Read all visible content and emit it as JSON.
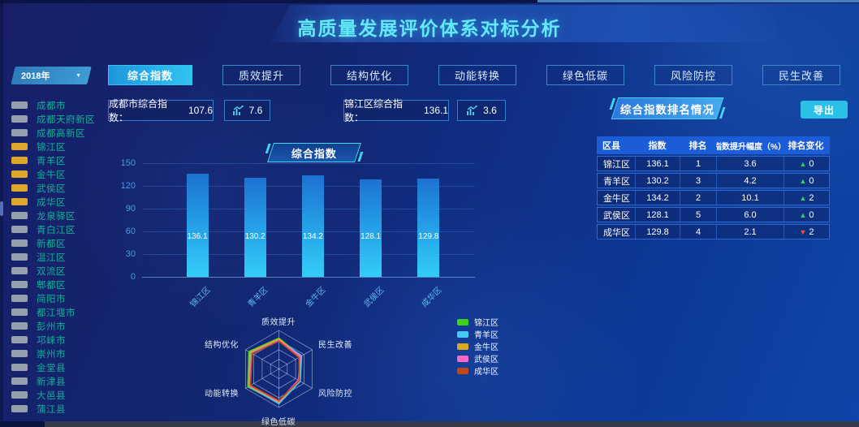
{
  "header": {
    "title": "高质量发展评价体系对标分析"
  },
  "sidebar": {
    "year": "2018年",
    "districts": [
      {
        "label": "成都市",
        "checked": false
      },
      {
        "label": "成都天府新区",
        "checked": false
      },
      {
        "label": "成都高新区",
        "checked": false
      },
      {
        "label": "锦江区",
        "checked": true
      },
      {
        "label": "青羊区",
        "checked": true
      },
      {
        "label": "金牛区",
        "checked": true
      },
      {
        "label": "武侯区",
        "checked": true
      },
      {
        "label": "成华区",
        "checked": true
      },
      {
        "label": "龙泉驿区",
        "checked": false
      },
      {
        "label": "青白江区",
        "checked": false
      },
      {
        "label": "新都区",
        "checked": false
      },
      {
        "label": "温江区",
        "checked": false
      },
      {
        "label": "双流区",
        "checked": false
      },
      {
        "label": "郫都区",
        "checked": false
      },
      {
        "label": "简阳市",
        "checked": false
      },
      {
        "label": "都江堰市",
        "checked": false
      },
      {
        "label": "彭州市",
        "checked": false
      },
      {
        "label": "邛崃市",
        "checked": false
      },
      {
        "label": "崇州市",
        "checked": false
      },
      {
        "label": "金堂县",
        "checked": false
      },
      {
        "label": "新津县",
        "checked": false
      },
      {
        "label": "大邑县",
        "checked": false
      },
      {
        "label": "蒲江县",
        "checked": false
      }
    ]
  },
  "tabs": [
    {
      "label": "综合指数",
      "active": true
    },
    {
      "label": "质效提升",
      "active": false
    },
    {
      "label": "结构优化",
      "active": false
    },
    {
      "label": "动能转换",
      "active": false
    },
    {
      "label": "绿色低碳",
      "active": false
    },
    {
      "label": "风险防控",
      "active": false
    },
    {
      "label": "民生改善",
      "active": false
    }
  ],
  "metrics": {
    "city_label": "成都市综合指数：",
    "city_value": "107.6",
    "city_delta": "7.6",
    "district_label": "锦江区综合指数：",
    "district_value": "136.1",
    "district_delta": "3.6"
  },
  "ranking": {
    "title": "综合指数排名情况",
    "export_label": "导出",
    "headers": [
      "区县",
      "指数",
      "排名",
      "指数提升幅度（%）",
      "排名变化"
    ],
    "rows": [
      {
        "district": "锦江区",
        "index": "136.1",
        "rank": "1",
        "improve": "3.6",
        "change": "0",
        "direction": "up"
      },
      {
        "district": "青羊区",
        "index": "130.2",
        "rank": "3",
        "improve": "4.2",
        "change": "0",
        "direction": "up"
      },
      {
        "district": "金牛区",
        "index": "134.2",
        "rank": "2",
        "improve": "10.1",
        "change": "2",
        "direction": "up"
      },
      {
        "district": "武侯区",
        "index": "128.1",
        "rank": "5",
        "improve": "6.0",
        "change": "0",
        "direction": "up"
      },
      {
        "district": "成华区",
        "index": "129.8",
        "rank": "4",
        "improve": "2.1",
        "change": "2",
        "direction": "down"
      }
    ]
  },
  "chart_data": [
    {
      "type": "bar",
      "title": "综合指数",
      "categories": [
        "锦江区",
        "青羊区",
        "金牛区",
        "武侯区",
        "成华区"
      ],
      "values": [
        136.1,
        130.2,
        134.2,
        128.1,
        129.8
      ],
      "xlabel": "",
      "ylabel": "",
      "ylim": [
        0,
        150
      ],
      "yticks": [
        0,
        30,
        60,
        90,
        120,
        150
      ],
      "grid": true,
      "bar_color_top": "#1c72d0",
      "bar_color_bottom": "#33cdf7"
    },
    {
      "type": "radar",
      "axes": [
        "质效提升",
        "民生改善",
        "风险防控",
        "绿色低碳",
        "动能转换",
        "结构优化"
      ],
      "max": 100,
      "rings": 4,
      "legend_position": "right",
      "series": [
        {
          "name": "锦江区",
          "color": "#3fd321",
          "values": [
            80,
            66,
            62,
            88,
            93,
            90
          ]
        },
        {
          "name": "青羊区",
          "color": "#45c8f5",
          "values": [
            76,
            68,
            64,
            90,
            90,
            84
          ]
        },
        {
          "name": "金牛区",
          "color": "#dda81f",
          "values": [
            78,
            63,
            60,
            86,
            89,
            87
          ]
        },
        {
          "name": "武侯区",
          "color": "#f868c8",
          "values": [
            74,
            65,
            58,
            84,
            87,
            82
          ]
        },
        {
          "name": "成华区",
          "color": "#c04818",
          "values": [
            72,
            60,
            61,
            82,
            85,
            80
          ]
        }
      ]
    }
  ],
  "colors": {
    "accent_cyan": "#41d6f2",
    "active_tab": "#33c3ef",
    "checked_orange": "#e0a62b",
    "table_header_blue": "#1b5cd8",
    "up_green": "#35d05a",
    "down_red": "#ff4a22"
  }
}
